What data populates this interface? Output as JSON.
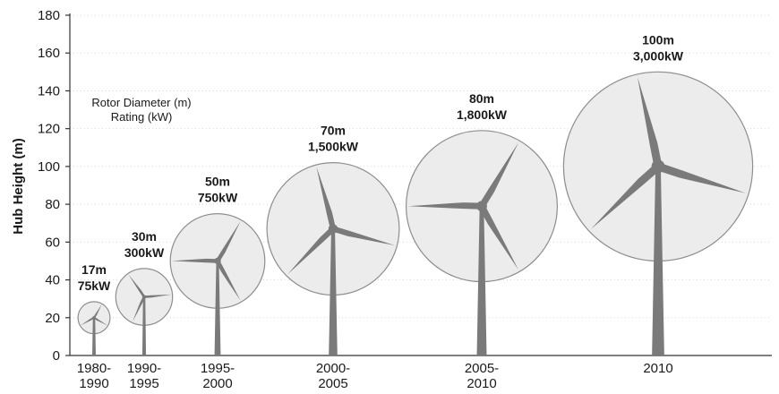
{
  "chart_data": {
    "type": "scatter",
    "title": "",
    "ylabel": "Hub Height (m)",
    "xlabel": "",
    "ylim": [
      0,
      180
    ],
    "yticks": [
      "0",
      "20",
      "40",
      "60",
      "80",
      "100",
      "120",
      "140",
      "160",
      "180"
    ],
    "grid": true,
    "legend": {
      "placement": "top-left",
      "lines": [
        "Rotor Diameter (m)",
        "Rating (kW)"
      ]
    },
    "colors": {
      "rotor_fill": "#ececec",
      "rotor_stroke": "#8e8e8e",
      "turbine": "#7a7a7a"
    },
    "categories": [
      {
        "period": [
          "1980-",
          "1990"
        ],
        "hub_height_m": 20,
        "rotor_diameter_label": "17m",
        "rating_label": "75kW",
        "rotor_diameter_m": 17,
        "rating_kw": 75
      },
      {
        "period": [
          "1990-",
          "1995"
        ],
        "hub_height_m": 31,
        "rotor_diameter_label": "30m",
        "rating_label": "300kW",
        "rotor_diameter_m": 30,
        "rating_kw": 300
      },
      {
        "period": [
          "1995-",
          "2000"
        ],
        "hub_height_m": 50,
        "rotor_diameter_label": "50m",
        "rating_label": "750kW",
        "rotor_diameter_m": 50,
        "rating_kw": 750
      },
      {
        "period": [
          "2000-",
          "2005"
        ],
        "hub_height_m": 67,
        "rotor_diameter_label": "70m",
        "rating_label": "1,500kW",
        "rotor_diameter_m": 70,
        "rating_kw": 1500
      },
      {
        "period": [
          "2005-",
          "2010"
        ],
        "hub_height_m": 79,
        "rotor_diameter_label": "80m",
        "rating_label": "1,800kW",
        "rotor_diameter_m": 80,
        "rating_kw": 1800
      },
      {
        "period": [
          "2010"
        ],
        "hub_height_m": 100,
        "rotor_diameter_label": "100m",
        "rating_label": "3,000kW",
        "rotor_diameter_m": 100,
        "rating_kw": 3000
      }
    ]
  }
}
